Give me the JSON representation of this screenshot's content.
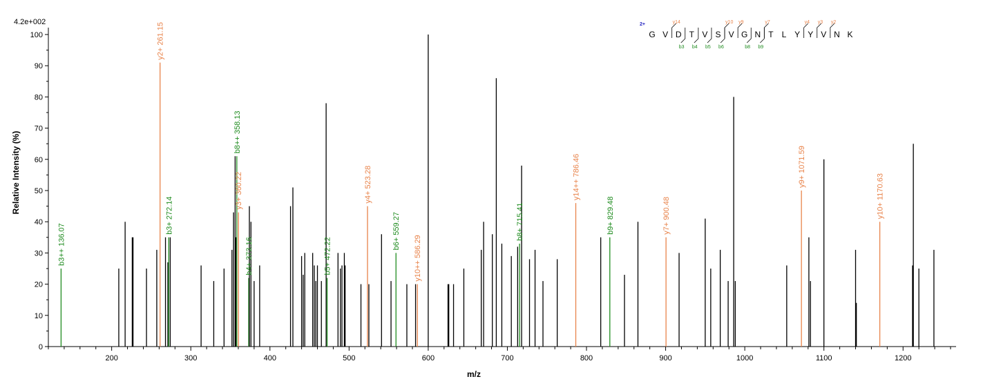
{
  "chart_data": {
    "type": "bar",
    "scale_label": "4.2e+002",
    "xlabel": "m/z",
    "ylabel": "Relative   Intensity (%)",
    "xlim": [
      120,
      1267
    ],
    "ylim": [
      0,
      100
    ],
    "xticks": [
      200,
      300,
      400,
      500,
      600,
      700,
      800,
      900,
      1000,
      1100,
      1200
    ],
    "yticks": [
      0,
      10,
      20,
      30,
      40,
      50,
      60,
      70,
      80,
      90,
      100
    ],
    "colors": {
      "unassigned": "#000000",
      "y_ion": "#e8834a",
      "b_ion": "#1e8b1e",
      "charge": "#1f1fbf"
    },
    "peaks": [
      {
        "x": 136.07,
        "y": 25,
        "ion": "b",
        "label": "b3++ 136.07"
      },
      {
        "x": 209,
        "y": 25
      },
      {
        "x": 217,
        "y": 40
      },
      {
        "x": 226,
        "y": 35
      },
      {
        "x": 227,
        "y": 35
      },
      {
        "x": 244,
        "y": 25
      },
      {
        "x": 257,
        "y": 31
      },
      {
        "x": 261.15,
        "y": 91,
        "ion": "y",
        "label": "y2+ 261.15"
      },
      {
        "x": 268,
        "y": 35
      },
      {
        "x": 271,
        "y": 27
      },
      {
        "x": 272.14,
        "y": 35,
        "ion": "b",
        "label": "b3+ 272.14"
      },
      {
        "x": 274,
        "y": 35
      },
      {
        "x": 313,
        "y": 26
      },
      {
        "x": 329,
        "y": 21
      },
      {
        "x": 342,
        "y": 25
      },
      {
        "x": 352,
        "y": 31
      },
      {
        "x": 354,
        "y": 43
      },
      {
        "x": 356,
        "y": 61
      },
      {
        "x": 357,
        "y": 35
      },
      {
        "x": 358.13,
        "y": 61,
        "ion": "b",
        "label": "b8++ 358.13"
      },
      {
        "x": 360.22,
        "y": 43,
        "ion": "y",
        "label": "y3+ 360.22"
      },
      {
        "x": 373.16,
        "y": 22,
        "ion": "b",
        "label": "b4+ 373.16"
      },
      {
        "x": 374,
        "y": 45
      },
      {
        "x": 376,
        "y": 40
      },
      {
        "x": 380,
        "y": 21
      },
      {
        "x": 387,
        "y": 26
      },
      {
        "x": 426,
        "y": 45
      },
      {
        "x": 429,
        "y": 51
      },
      {
        "x": 440,
        "y": 29
      },
      {
        "x": 442,
        "y": 23
      },
      {
        "x": 444,
        "y": 30
      },
      {
        "x": 454,
        "y": 30
      },
      {
        "x": 456,
        "y": 26
      },
      {
        "x": 458,
        "y": 21
      },
      {
        "x": 460,
        "y": 26
      },
      {
        "x": 465,
        "y": 21
      },
      {
        "x": 471,
        "y": 78
      },
      {
        "x": 472.22,
        "y": 22,
        "ion": "b",
        "label": "b5+ 472.22"
      },
      {
        "x": 486,
        "y": 30
      },
      {
        "x": 489,
        "y": 25
      },
      {
        "x": 491,
        "y": 26
      },
      {
        "x": 494,
        "y": 30
      },
      {
        "x": 495,
        "y": 26
      },
      {
        "x": 515,
        "y": 20
      },
      {
        "x": 523.28,
        "y": 45,
        "ion": "y",
        "label": "y4+ 523.28"
      },
      {
        "x": 525,
        "y": 20
      },
      {
        "x": 541,
        "y": 36
      },
      {
        "x": 553,
        "y": 21
      },
      {
        "x": 559.27,
        "y": 30,
        "ion": "b",
        "label": "b6+ 559.27"
      },
      {
        "x": 573,
        "y": 20
      },
      {
        "x": 584,
        "y": 20
      },
      {
        "x": 586.29,
        "y": 20,
        "ion": "y",
        "label": "y10++ 586.29"
      },
      {
        "x": 600,
        "y": 100
      },
      {
        "x": 625,
        "y": 20
      },
      {
        "x": 626,
        "y": 20
      },
      {
        "x": 632,
        "y": 20
      },
      {
        "x": 645,
        "y": 25
      },
      {
        "x": 667,
        "y": 31
      },
      {
        "x": 670,
        "y": 40
      },
      {
        "x": 681,
        "y": 36
      },
      {
        "x": 686,
        "y": 86
      },
      {
        "x": 693,
        "y": 33
      },
      {
        "x": 705,
        "y": 29
      },
      {
        "x": 713,
        "y": 32
      },
      {
        "x": 715.41,
        "y": 33,
        "ion": "b",
        "label": "b8+ 715.41"
      },
      {
        "x": 718,
        "y": 58
      },
      {
        "x": 728,
        "y": 28
      },
      {
        "x": 735,
        "y": 31
      },
      {
        "x": 745,
        "y": 21
      },
      {
        "x": 763,
        "y": 28
      },
      {
        "x": 786.46,
        "y": 46,
        "ion": "y",
        "label": "y14++ 786.46"
      },
      {
        "x": 818,
        "y": 35
      },
      {
        "x": 829.48,
        "y": 35,
        "ion": "b",
        "label": "b9+ 829.48"
      },
      {
        "x": 848,
        "y": 23
      },
      {
        "x": 865,
        "y": 40
      },
      {
        "x": 900.48,
        "y": 35,
        "ion": "y",
        "label": "y7+ 900.48"
      },
      {
        "x": 917,
        "y": 30
      },
      {
        "x": 950,
        "y": 41
      },
      {
        "x": 957,
        "y": 25
      },
      {
        "x": 969,
        "y": 31
      },
      {
        "x": 979,
        "y": 21
      },
      {
        "x": 986,
        "y": 80
      },
      {
        "x": 988,
        "y": 21
      },
      {
        "x": 1053,
        "y": 26
      },
      {
        "x": 1071.59,
        "y": 50,
        "ion": "y",
        "label": "y9+ 1071.59"
      },
      {
        "x": 1081,
        "y": 35
      },
      {
        "x": 1083,
        "y": 21
      },
      {
        "x": 1100,
        "y": 60
      },
      {
        "x": 1140,
        "y": 31
      },
      {
        "x": 1141,
        "y": 14
      },
      {
        "x": 1170.63,
        "y": 40,
        "ion": "y",
        "label": "y10+ 1170.63"
      },
      {
        "x": 1212,
        "y": 26
      },
      {
        "x": 1213,
        "y": 65
      },
      {
        "x": 1220,
        "y": 25
      },
      {
        "x": 1239,
        "y": 31
      }
    ],
    "sequence": {
      "charge": "2+",
      "residues": [
        "G",
        "V",
        "D",
        "T",
        "V",
        "S",
        "V",
        "G",
        "N",
        "T",
        "L",
        "Y",
        "Y",
        "V",
        "N",
        "K"
      ],
      "y_ions": [
        {
          "after": 2,
          "label": "y14"
        },
        {
          "after": 6,
          "label": "y10"
        },
        {
          "after": 7,
          "label": "y9"
        },
        {
          "after": 9,
          "label": "y7"
        },
        {
          "after": 12,
          "label": "y4"
        },
        {
          "after": 13,
          "label": "y3"
        },
        {
          "after": 14,
          "label": "y2"
        }
      ],
      "b_ions": [
        {
          "after": 3,
          "label": "b3"
        },
        {
          "after": 4,
          "label": "b4"
        },
        {
          "after": 5,
          "label": "b5"
        },
        {
          "after": 6,
          "label": "b6"
        },
        {
          "after": 8,
          "label": "b8"
        },
        {
          "after": 9,
          "label": "b9"
        }
      ]
    }
  }
}
